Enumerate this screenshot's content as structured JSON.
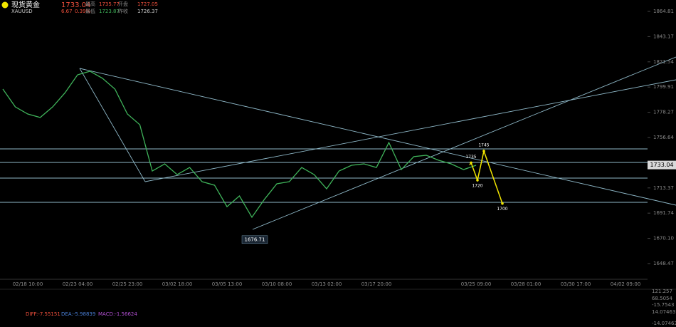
{
  "header": {
    "name": "现货黄金",
    "symbol": "XAUUSD",
    "last": 1733.04,
    "change": 6.67,
    "change_pct": "0.39%",
    "high_label": "最高",
    "high": 1735.77,
    "open_label": "开盘",
    "open": 1727.05,
    "low_label": "最低",
    "low": 1723.87,
    "prev_label": "昨收",
    "prev_close": 1726.37
  },
  "chart_data": {
    "type": "line",
    "categories": [
      null,
      null,
      "02/18 10:00",
      null,
      null,
      null,
      "02/23 04:00",
      null,
      null,
      null,
      "02/25 23:00",
      null,
      null,
      null,
      "03/02 18:00",
      null,
      null,
      null,
      "03/05 13:00",
      null,
      null,
      null,
      "03/10 08:00",
      null,
      null,
      null,
      "03/13 02:00",
      null,
      null,
      null,
      "03/17 20:00",
      null,
      null,
      null,
      null,
      null,
      null,
      null,
      "03/25 09:00",
      null,
      null,
      null,
      "03/28 01:00",
      null,
      null,
      null,
      "03/30 17:00",
      null,
      null,
      null,
      "04/02 09:00",
      null
    ],
    "series": [
      {
        "name": "XAUUSD",
        "color": "#3fb35a",
        "values": [
          1798.2,
          1782.9,
          1776.8,
          1773.8,
          1782.9,
          1795.1,
          1810.4,
          1813.5,
          1807.4,
          1798.2,
          1776.8,
          1767.6,
          1727.9,
          1734.0,
          1724.8,
          1730.9,
          1718.7,
          1715.7,
          1697.3,
          1706.5,
          1688.2,
          1703.5,
          1716.9,
          1718.7,
          1730.9,
          1724.8,
          1712.6,
          1727.9,
          1732.8,
          1734.0,
          1730.9,
          1752.3,
          1729.1,
          1740.2,
          1741.4,
          1737.1,
          1734.0,
          1729.1,
          1732.8,
          null,
          null,
          null,
          null,
          null,
          null,
          null,
          null,
          null,
          null,
          null,
          null,
          null
        ]
      }
    ],
    "ylim": [
      1635,
      1874.6
    ],
    "yticks": [
      1864.81,
      1843.17,
      1821.54,
      1799.91,
      1778.27,
      1756.64,
      1713.37,
      1691.74,
      {
        "value": 1670.1,
        "label": "1670.10"
      },
      1648.47
    ],
    "low_marker": 1676.71,
    "projection": [
      1735,
      1720,
      1745,
      1700
    ],
    "projection_color": "#f2e600"
  },
  "indicators": {
    "macd_labels": [
      "DIFF:-7.55151",
      "DEA:-5.98839",
      "MACD:-1.56624"
    ],
    "upper_axis": [
      "121.257",
      "68.5054",
      "-15.7543"
    ],
    "lower_axis": [
      "14.07463",
      "-14.07463"
    ]
  }
}
